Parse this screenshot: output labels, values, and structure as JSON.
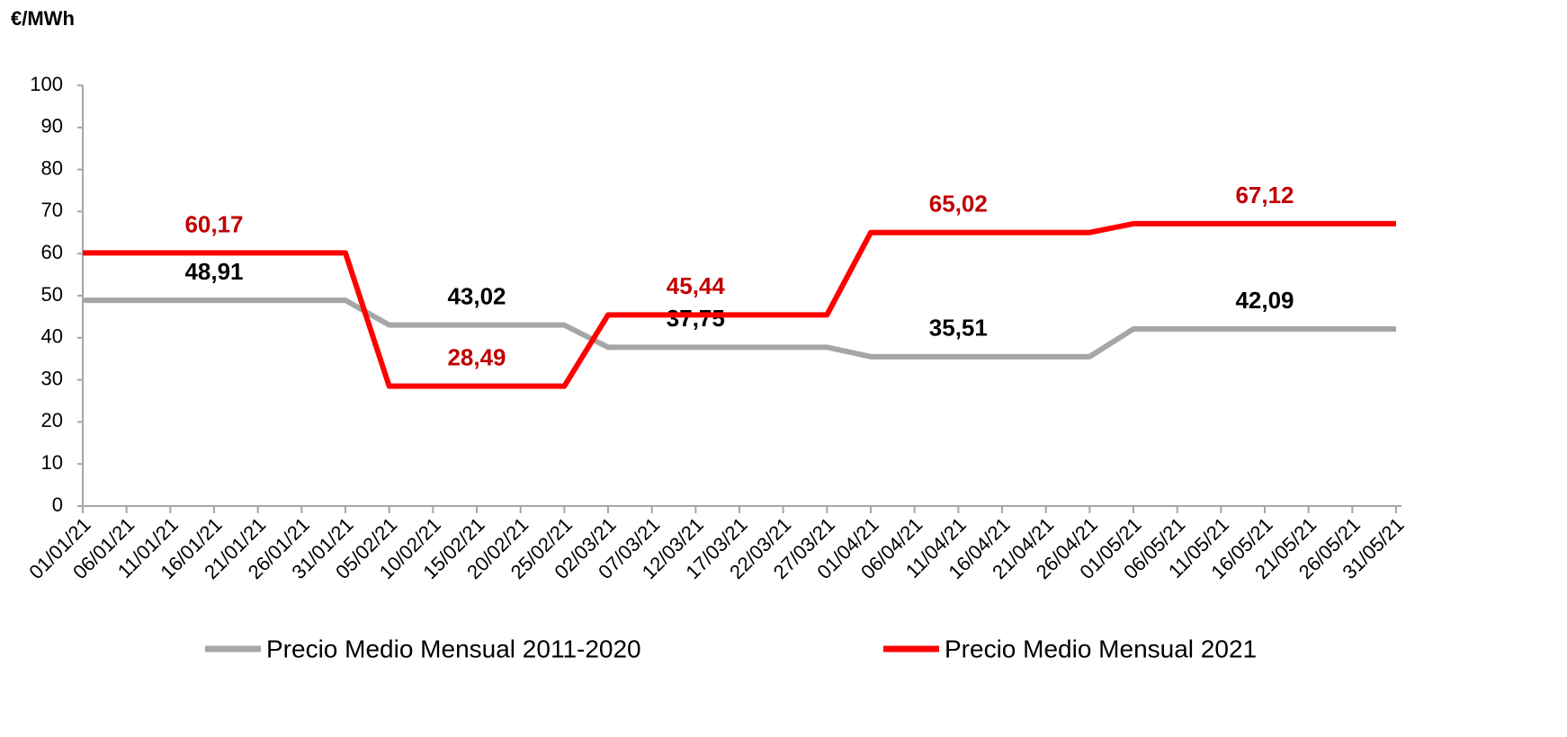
{
  "chart_data": {
    "type": "line",
    "y_label": "€/MWh",
    "categories": [
      "01/01/21",
      "06/01/21",
      "11/01/21",
      "16/01/21",
      "21/01/21",
      "26/01/21",
      "31/01/21",
      "05/02/21",
      "10/02/21",
      "15/02/21",
      "20/02/21",
      "25/02/21",
      "02/03/21",
      "07/03/21",
      "12/03/21",
      "17/03/21",
      "22/03/21",
      "27/03/21",
      "01/04/21",
      "06/04/21",
      "11/04/21",
      "16/04/21",
      "21/04/21",
      "26/04/21",
      "01/05/21",
      "06/05/21",
      "11/05/21",
      "16/05/21",
      "21/05/21",
      "26/05/21",
      "31/05/21"
    ],
    "series": [
      {
        "name": "Precio Medio Mensual 2011-2020",
        "color": "#a6a6a6",
        "label_color": "#000000",
        "values": [
          48.91,
          48.91,
          48.91,
          48.91,
          48.91,
          48.91,
          48.91,
          43.02,
          43.02,
          43.02,
          43.02,
          43.02,
          37.75,
          37.75,
          37.75,
          37.75,
          37.75,
          37.75,
          35.51,
          35.51,
          35.51,
          35.51,
          35.51,
          35.51,
          42.09,
          42.09,
          42.09,
          42.09,
          42.09,
          42.09,
          42.09
        ],
        "value_labels": [
          null,
          null,
          null,
          "48,91",
          null,
          null,
          null,
          null,
          null,
          "43,02",
          null,
          null,
          null,
          null,
          "37,75",
          null,
          null,
          null,
          null,
          null,
          "35,51",
          null,
          null,
          null,
          null,
          null,
          null,
          "42,09",
          null,
          null,
          null
        ]
      },
      {
        "name": "Precio Medio Mensual 2021",
        "color": "#ff0000",
        "label_color": "#c00000",
        "values": [
          60.17,
          60.17,
          60.17,
          60.17,
          60.17,
          60.17,
          60.17,
          28.49,
          28.49,
          28.49,
          28.49,
          28.49,
          45.44,
          45.44,
          45.44,
          45.44,
          45.44,
          45.44,
          65.02,
          65.02,
          65.02,
          65.02,
          65.02,
          65.02,
          67.12,
          67.12,
          67.12,
          67.12,
          67.12,
          67.12,
          67.12
        ],
        "value_labels": [
          null,
          null,
          null,
          "60,17",
          null,
          null,
          null,
          null,
          null,
          "28,49",
          null,
          null,
          null,
          null,
          "45,44",
          null,
          null,
          null,
          null,
          null,
          "65,02",
          null,
          null,
          null,
          null,
          null,
          null,
          "67,12",
          null,
          null,
          null
        ]
      }
    ],
    "ylim": [
      0,
      100
    ],
    "yticks": [
      0,
      10,
      20,
      30,
      40,
      50,
      60,
      70,
      80,
      90,
      100
    ],
    "grid": false,
    "legend": "bottom"
  }
}
